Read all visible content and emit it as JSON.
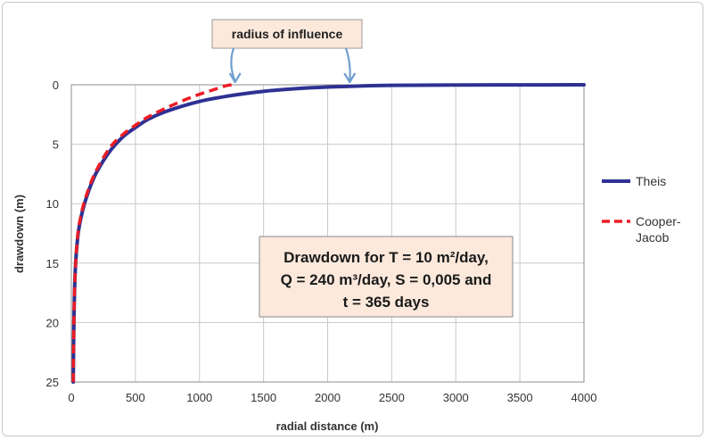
{
  "chart_data": {
    "type": "line",
    "title": "",
    "xlabel": "radial distance (m)",
    "ylabel": "drawdown (m)",
    "xlim": [
      0,
      4000
    ],
    "ylim": [
      0,
      25
    ],
    "y_inverted": true,
    "grid": true,
    "legend_position": "right",
    "x_ticks": [
      "0",
      "500",
      "1000",
      "1500",
      "2000",
      "2500",
      "3000",
      "3500",
      "4000"
    ],
    "y_ticks": [
      "0",
      "5",
      "10",
      "15",
      "20",
      "25"
    ],
    "series": [
      {
        "name": "Theis",
        "color": "#2e3192",
        "style": "solid",
        "x": [
          15,
          20,
          30,
          50,
          75,
          100,
          150,
          200,
          300,
          400,
          500,
          600,
          750,
          1000,
          1250,
          1500,
          1750,
          2000,
          2250,
          2500,
          3000,
          3500,
          4000
        ],
        "y": [
          25,
          20,
          15.8,
          12.8,
          11.2,
          10.1,
          8.5,
          7.3,
          5.6,
          4.4,
          3.6,
          2.9,
          2.2,
          1.4,
          0.9,
          0.55,
          0.33,
          0.19,
          0.1,
          0.05,
          0.02,
          0.01,
          0.0
        ]
      },
      {
        "name": "Cooper-\nJacob",
        "color": "#ed1c24",
        "style": "dashed",
        "x": [
          15,
          20,
          30,
          50,
          75,
          100,
          150,
          200,
          300,
          400,
          500,
          600,
          750,
          900,
          1000,
          1100,
          1200,
          1250
        ],
        "y": [
          25,
          20,
          15.8,
          12.6,
          11.0,
          9.9,
          8.3,
          7.1,
          5.3,
          4.2,
          3.4,
          2.7,
          1.9,
          1.2,
          0.8,
          0.45,
          0.1,
          0.0
        ]
      }
    ],
    "annotations": {
      "callout": "radius of influence",
      "callout_points_x": [
        1250,
        2200
      ],
      "note_lines": [
        "Drawdown for T = 10 m²/day,",
        "Q = 240 m³/day, S = 0,005 and",
        "t = 365 days"
      ]
    }
  }
}
